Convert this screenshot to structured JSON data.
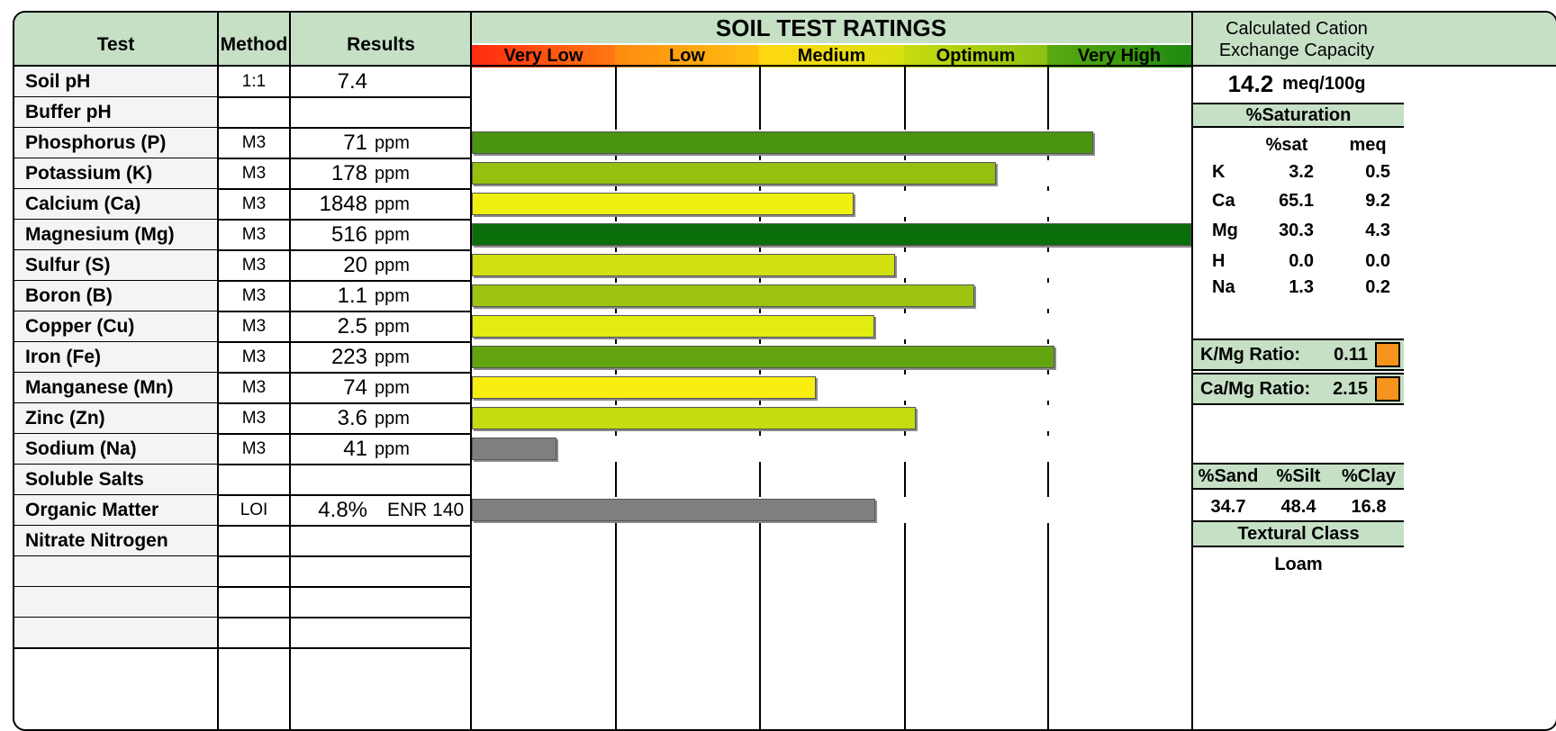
{
  "header": {
    "test": "Test",
    "method": "Method",
    "results": "Results",
    "ratings_title": "SOIL TEST RATINGS",
    "scale": [
      {
        "label": "Very Low",
        "color": "#ff2a10",
        "color2": "#ff7a12"
      },
      {
        "label": "Low",
        "color": "#ff8a10",
        "color2": "#ffc010"
      },
      {
        "label": "Medium",
        "color": "#ffd810",
        "color2": "#d8e010"
      },
      {
        "label": "Optimum",
        "color": "#c8dc10",
        "color2": "#8cc010"
      },
      {
        "label": "Very High",
        "color": "#5aaa10",
        "color2": "#1e8a10"
      }
    ]
  },
  "rows": [
    {
      "test": "Soil pH",
      "method": "1:1",
      "value": "7.4",
      "unit": "",
      "extra": "",
      "bar_pct": null,
      "bar_color": ""
    },
    {
      "test": "Buffer pH",
      "method": "",
      "value": "",
      "unit": "",
      "extra": "",
      "bar_pct": null,
      "bar_color": ""
    },
    {
      "test": "Phosphorus (P)",
      "method": "M3",
      "value": "71",
      "unit": "ppm",
      "extra": "",
      "bar_pct": 86.4,
      "bar_color": "#4a9410"
    },
    {
      "test": "Potassium (K)",
      "method": "M3",
      "value": "178",
      "unit": "ppm",
      "extra": "",
      "bar_pct": 72.8,
      "bar_color": "#96c010"
    },
    {
      "test": "Calcium (Ca)",
      "method": "M3",
      "value": "1848",
      "unit": "ppm",
      "extra": "",
      "bar_pct": 53.1,
      "bar_color": "#f0f010"
    },
    {
      "test": "Magnesium (Mg)",
      "method": "M3",
      "value": "516",
      "unit": "ppm",
      "extra": "",
      "bar_pct": 100,
      "bar_color": "#0a6e0a"
    },
    {
      "test": "Sulfur (S)",
      "method": "M3",
      "value": "20",
      "unit": "ppm",
      "extra": "",
      "bar_pct": 58.8,
      "bar_color": "#d0e010"
    },
    {
      "test": "Boron (B)",
      "method": "M3",
      "value": "1.1",
      "unit": "ppm",
      "extra": "",
      "bar_pct": 69.8,
      "bar_color": "#9cc410"
    },
    {
      "test": "Copper (Cu)",
      "method": "M3",
      "value": "2.5",
      "unit": "ppm",
      "extra": "",
      "bar_pct": 56.0,
      "bar_color": "#e2ec10"
    },
    {
      "test": "Iron (Fe)",
      "method": "M3",
      "value": "223",
      "unit": "ppm",
      "extra": "",
      "bar_pct": 81.0,
      "bar_color": "#62a410"
    },
    {
      "test": "Manganese (Mn)",
      "method": "M3",
      "value": "74",
      "unit": "ppm",
      "extra": "",
      "bar_pct": 47.8,
      "bar_color": "#f8ee10"
    },
    {
      "test": "Zinc (Zn)",
      "method": "M3",
      "value": "3.6",
      "unit": "ppm",
      "extra": "",
      "bar_pct": 61.7,
      "bar_color": "#c4dc10"
    },
    {
      "test": "Sodium (Na)",
      "method": "M3",
      "value": "41",
      "unit": "ppm",
      "extra": "",
      "bar_pct": 11.8,
      "bar_color": "#7f7f7f"
    },
    {
      "test": "Soluble Salts",
      "method": "",
      "value": "",
      "unit": "",
      "extra": "",
      "bar_pct": null,
      "bar_color": ""
    },
    {
      "test": "Organic Matter",
      "method": "LOI",
      "value": "4.8%",
      "unit": "",
      "extra": "ENR 140",
      "bar_pct": 56.1,
      "bar_color": "#7f7f7f"
    },
    {
      "test": "Nitrate Nitrogen",
      "method": "",
      "value": "",
      "unit": "",
      "extra": "",
      "bar_pct": null,
      "bar_color": ""
    },
    {
      "test": "",
      "method": "",
      "value": "",
      "unit": "",
      "extra": "",
      "bar_pct": null,
      "bar_color": ""
    },
    {
      "test": "",
      "method": "",
      "value": "",
      "unit": "",
      "extra": "",
      "bar_pct": null,
      "bar_color": ""
    },
    {
      "test": "",
      "method": "",
      "value": "",
      "unit": "",
      "extra": "",
      "bar_pct": null,
      "bar_color": ""
    }
  ],
  "cec": {
    "title_line1": "Calculated Cation",
    "title_line2": "Exchange Capacity",
    "value": "14.2",
    "unit": "meq/100g"
  },
  "saturation": {
    "title": "%Saturation",
    "col_sat": "%sat",
    "col_meq": "meq",
    "rows": [
      {
        "el": "K",
        "sat": "3.2",
        "meq": "0.5"
      },
      {
        "el": "Ca",
        "sat": "65.1",
        "meq": "9.2"
      },
      {
        "el": "Mg",
        "sat": "30.3",
        "meq": "4.3"
      },
      {
        "el": "H",
        "sat": "0.0",
        "meq": "0.0"
      },
      {
        "el": "Na",
        "sat": "1.3",
        "meq": "0.2"
      }
    ]
  },
  "ratios": [
    {
      "label": "K/Mg Ratio:",
      "value": "0.11",
      "color": "#f7941d"
    },
    {
      "label": "Ca/Mg Ratio:",
      "value": "2.15",
      "color": "#f7941d"
    }
  ],
  "texture": {
    "sand_label": "%Sand",
    "silt_label": "%Silt",
    "clay_label": "%Clay",
    "sand": "34.7",
    "silt": "48.4",
    "clay": "16.8",
    "class_title": "Textural Class",
    "class_value": "Loam"
  }
}
